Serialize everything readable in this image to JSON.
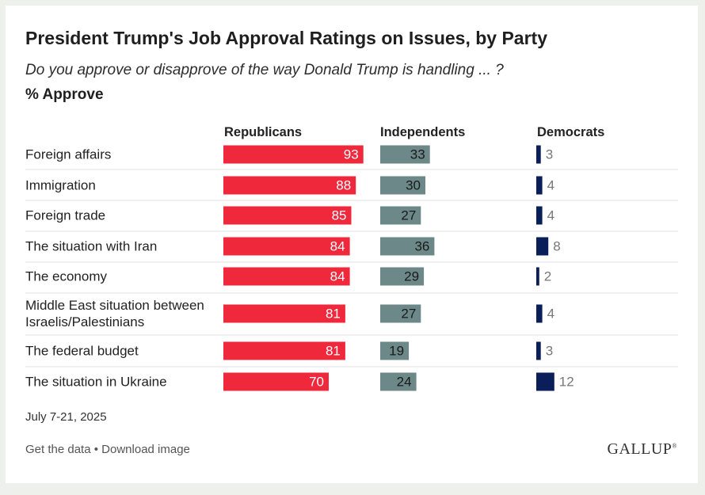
{
  "title": "President Trump's Job Approval Ratings on Issues, by Party",
  "subtitle": "Do you approve or disapprove of the way Donald Trump is handling ... ?",
  "measure": "% Approve",
  "date": "July 7-21, 2025",
  "footer": {
    "get_data": "Get the data",
    "separator": "•",
    "download": "Download image",
    "brand": "GALLUP"
  },
  "colors": {
    "republicans": "#f0283c",
    "independents": "#6c8888",
    "democrats": "#0a1e5a",
    "divider": "#e2e2e2"
  },
  "chart_data": {
    "type": "bar",
    "categories": [
      "Foreign affairs",
      "Immigration",
      "Foreign trade",
      "The situation with Iran",
      "The economy",
      "Middle East situation between Israelis/Palestinians",
      "The federal budget",
      "The situation in Ukraine"
    ],
    "category_lines": [
      [
        "Foreign affairs"
      ],
      [
        "Immigration"
      ],
      [
        "Foreign trade"
      ],
      [
        "The situation with Iran"
      ],
      [
        "The economy"
      ],
      [
        "Middle East situation between",
        "Israelis/Palestinians"
      ],
      [
        "The federal budget"
      ],
      [
        "The situation in Ukraine"
      ]
    ],
    "series": [
      {
        "name": "Republicans",
        "values": [
          93,
          88,
          85,
          84,
          84,
          81,
          81,
          70
        ]
      },
      {
        "name": "Independents",
        "values": [
          33,
          30,
          27,
          36,
          29,
          27,
          19,
          24
        ]
      },
      {
        "name": "Democrats",
        "values": [
          3,
          4,
          4,
          8,
          2,
          4,
          3,
          12
        ]
      }
    ],
    "ylim": [
      0,
      100
    ],
    "grid": false,
    "orientation": "horizontal"
  }
}
